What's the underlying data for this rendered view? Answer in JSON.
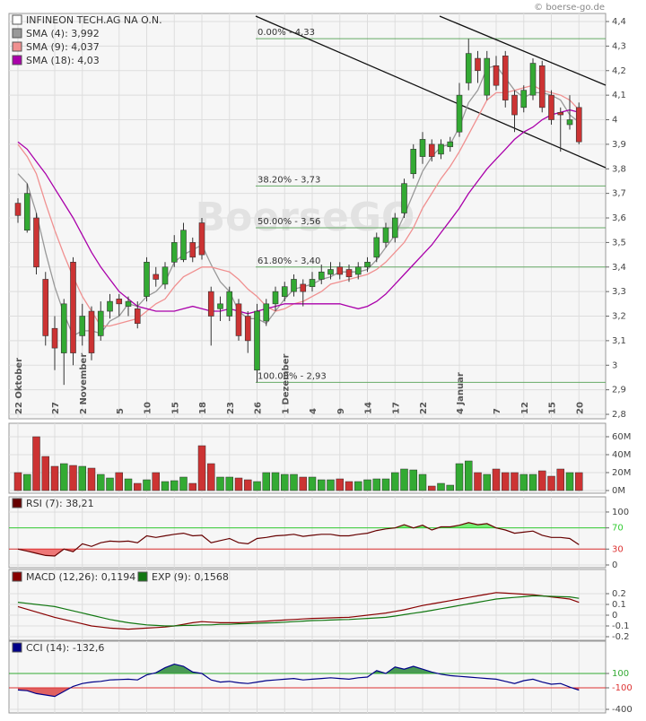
{
  "header": {
    "copyright": "© boerse-go.de"
  },
  "chart_data": [
    {
      "type": "candlestick",
      "name": "INFINEON TECH.AG NA O.N.",
      "name_color": "#ffffff",
      "watermark": "BoerseGO",
      "grid": true,
      "categories": [
        "22 Oktober",
        null,
        null,
        null,
        "27",
        null,
        null,
        "2 November",
        null,
        null,
        null,
        "5",
        null,
        null,
        "10",
        null,
        null,
        "15",
        null,
        null,
        "18",
        null,
        null,
        "23",
        null,
        null,
        "26",
        null,
        null,
        "1 Dezember",
        null,
        null,
        "4",
        null,
        null,
        "9",
        null,
        null,
        "14",
        null,
        null,
        "17",
        null,
        null,
        "22",
        null,
        null,
        null,
        "4 Januar",
        null,
        null,
        null,
        "7",
        null,
        null,
        "12",
        null,
        null,
        "15",
        null,
        null,
        "20"
      ],
      "open": [
        3.66,
        3.55,
        3.6,
        3.35,
        3.15,
        3.05,
        3.42,
        3.12,
        3.22,
        3.12,
        3.22,
        3.27,
        3.24,
        3.23,
        3.28,
        3.37,
        3.33,
        3.42,
        3.43,
        3.5,
        3.58,
        3.3,
        3.23,
        3.2,
        3.25,
        3.2,
        2.98,
        3.18,
        3.25,
        3.28,
        3.3,
        3.33,
        3.32,
        3.35,
        3.37,
        3.4,
        3.39,
        3.37,
        3.4,
        3.44,
        3.5,
        3.52,
        3.62,
        3.78,
        3.85,
        3.9,
        3.86,
        3.89,
        3.95,
        4.15,
        4.25,
        4.1,
        4.22,
        4.26,
        4.1,
        4.05,
        4.1,
        4.22,
        4.1,
        4.03,
        3.98,
        4.05
      ],
      "high": [
        3.68,
        3.74,
        3.62,
        3.38,
        3.2,
        3.27,
        3.44,
        3.25,
        3.24,
        3.26,
        3.29,
        3.29,
        3.28,
        3.26,
        3.44,
        3.4,
        3.42,
        3.53,
        3.58,
        3.52,
        3.6,
        3.32,
        3.28,
        3.32,
        3.27,
        3.22,
        3.25,
        3.27,
        3.32,
        3.34,
        3.37,
        3.35,
        3.38,
        3.41,
        3.42,
        3.42,
        3.41,
        3.42,
        3.44,
        3.54,
        3.58,
        3.62,
        3.76,
        3.9,
        3.95,
        3.92,
        3.92,
        3.93,
        4.15,
        4.33,
        4.28,
        4.28,
        4.26,
        4.28,
        4.12,
        4.14,
        4.25,
        4.24,
        4.12,
        4.05,
        4.1,
        4.07
      ],
      "low": [
        3.58,
        3.54,
        3.37,
        3.08,
        2.98,
        2.92,
        3.0,
        3.08,
        3.02,
        3.1,
        3.19,
        3.2,
        3.2,
        3.15,
        3.26,
        3.32,
        3.31,
        3.4,
        3.42,
        3.42,
        3.43,
        3.08,
        3.18,
        3.18,
        3.1,
        3.05,
        2.93,
        3.16,
        3.22,
        3.26,
        3.28,
        3.24,
        3.3,
        3.33,
        3.35,
        3.35,
        3.34,
        3.35,
        3.38,
        3.42,
        3.48,
        3.5,
        3.6,
        3.76,
        3.82,
        3.83,
        3.84,
        3.87,
        3.93,
        4.12,
        4.15,
        4.08,
        4.12,
        4.05,
        3.95,
        4.03,
        4.08,
        4.03,
        3.98,
        3.87,
        3.96,
        3.9
      ],
      "close": [
        3.61,
        3.7,
        3.4,
        3.12,
        3.07,
        3.25,
        3.05,
        3.2,
        3.05,
        3.22,
        3.26,
        3.25,
        3.26,
        3.17,
        3.42,
        3.35,
        3.4,
        3.5,
        3.55,
        3.44,
        3.45,
        3.2,
        3.25,
        3.3,
        3.12,
        3.1,
        3.22,
        3.25,
        3.3,
        3.32,
        3.35,
        3.3,
        3.35,
        3.38,
        3.39,
        3.37,
        3.36,
        3.4,
        3.42,
        3.52,
        3.56,
        3.6,
        3.74,
        3.88,
        3.92,
        3.85,
        3.9,
        3.91,
        4.1,
        4.27,
        4.2,
        4.25,
        4.14,
        4.08,
        4.02,
        4.12,
        4.23,
        4.05,
        4.0,
        4.02,
        4.0,
        3.91
      ],
      "up_color": "#33aa33",
      "down_color": "#cc3333",
      "series": [
        {
          "name": "SMA (4): 3,992",
          "color": "#999999",
          "values": [
            3.78,
            3.74,
            3.62,
            3.46,
            3.32,
            3.21,
            3.12,
            3.14,
            3.14,
            3.13,
            3.18,
            3.2,
            3.25,
            3.24,
            3.28,
            3.3,
            3.34,
            3.42,
            3.45,
            3.47,
            3.49,
            3.41,
            3.34,
            3.3,
            3.22,
            3.19,
            3.19,
            3.17,
            3.22,
            3.27,
            3.31,
            3.32,
            3.33,
            3.35,
            3.36,
            3.38,
            3.38,
            3.38,
            3.39,
            3.43,
            3.48,
            3.53,
            3.61,
            3.7,
            3.79,
            3.85,
            3.89,
            3.9,
            3.97,
            4.07,
            4.12,
            4.21,
            4.22,
            4.17,
            4.12,
            4.09,
            4.11,
            4.11,
            4.1,
            4.08,
            4.02,
            3.99
          ]
        },
        {
          "name": "SMA (9): 4,037",
          "color": "#f09090",
          "values": [
            3.9,
            3.85,
            3.78,
            3.66,
            3.55,
            3.45,
            3.36,
            3.28,
            3.22,
            3.16,
            3.16,
            3.17,
            3.18,
            3.19,
            3.22,
            3.25,
            3.27,
            3.32,
            3.36,
            3.38,
            3.4,
            3.4,
            3.39,
            3.38,
            3.35,
            3.31,
            3.28,
            3.24,
            3.22,
            3.23,
            3.25,
            3.26,
            3.28,
            3.3,
            3.33,
            3.34,
            3.35,
            3.36,
            3.37,
            3.39,
            3.42,
            3.46,
            3.5,
            3.56,
            3.64,
            3.7,
            3.76,
            3.81,
            3.87,
            3.94,
            4.01,
            4.08,
            4.11,
            4.11,
            4.12,
            4.13,
            4.14,
            4.12,
            4.11,
            4.1,
            4.08,
            4.04
          ]
        },
        {
          "name": "SMA (18): 4,03",
          "color": "#aa00aa",
          "values": [
            3.91,
            3.88,
            3.83,
            3.78,
            3.72,
            3.66,
            3.6,
            3.53,
            3.46,
            3.4,
            3.35,
            3.3,
            3.27,
            3.24,
            3.23,
            3.22,
            3.22,
            3.22,
            3.23,
            3.24,
            3.23,
            3.22,
            3.22,
            3.23,
            3.22,
            3.21,
            3.22,
            3.23,
            3.24,
            3.25,
            3.25,
            3.25,
            3.25,
            3.25,
            3.25,
            3.25,
            3.24,
            3.23,
            3.24,
            3.26,
            3.29,
            3.33,
            3.37,
            3.41,
            3.45,
            3.49,
            3.54,
            3.59,
            3.64,
            3.7,
            3.75,
            3.8,
            3.84,
            3.88,
            3.92,
            3.95,
            3.97,
            4.0,
            4.02,
            4.03,
            4.04,
            4.03
          ]
        }
      ],
      "ylim": [
        2.78,
        4.43
      ],
      "yticks": [
        {
          "value": 2.8,
          "label": "2,8"
        },
        {
          "value": 2.9,
          "label": "2,9"
        },
        3,
        {
          "value": 3.1,
          "label": "3,1"
        },
        {
          "value": 3.2,
          "label": "3,2"
        },
        {
          "value": 3.3,
          "label": "3,3"
        },
        {
          "value": 3.4,
          "label": "3,4"
        },
        {
          "value": 3.5,
          "label": "3,5"
        },
        {
          "value": 3.6,
          "label": "3,6"
        },
        {
          "value": 3.7,
          "label": "3,7"
        },
        {
          "value": 3.8,
          "label": "3,8"
        },
        {
          "value": 3.9,
          "label": "3,9"
        },
        4,
        {
          "value": 4.1,
          "label": "4,1"
        },
        {
          "value": 4.2,
          "label": "4,2"
        },
        {
          "value": 4.3,
          "label": "4,3"
        },
        {
          "value": 4.4,
          "label": "4,4"
        }
      ],
      "fib_color": "#66aa66",
      "fib_levels": [
        {
          "value": 4.33,
          "label": "0.00% - 4,33"
        },
        {
          "value": 3.73,
          "label": "38.20% - 3,73"
        },
        {
          "value": 3.56,
          "label": "50.00% - 3,56"
        },
        {
          "value": 3.4,
          "label": "61.80% - 3,40"
        },
        {
          "value": 2.93,
          "label": "100.00% - 2,93"
        }
      ]
    },
    {
      "type": "bar",
      "grid": true,
      "values": [
        20,
        18,
        60,
        38,
        27,
        30,
        28,
        27,
        25,
        18,
        14,
        20,
        13,
        8,
        12,
        20,
        10,
        11,
        15,
        8,
        50,
        30,
        15,
        15,
        14,
        12,
        10,
        20,
        20,
        18,
        18,
        15,
        15,
        12,
        12,
        13,
        10,
        10,
        12,
        13,
        13,
        20,
        24,
        23,
        18,
        5,
        8,
        6,
        30,
        33,
        20,
        18,
        24,
        20,
        20,
        18,
        18,
        22,
        16,
        24,
        20,
        20
      ],
      "ylim": [
        0,
        72
      ],
      "yticks": [
        {
          "value": 0,
          "label": "0M"
        },
        {
          "value": 20,
          "label": "20M"
        },
        {
          "value": 40,
          "label": "40M"
        },
        {
          "value": 60,
          "label": "60M"
        }
      ]
    },
    {
      "type": "line",
      "grid": true,
      "series": [
        {
          "name": "RSI (7): 38,21",
          "color": "#660000",
          "values": [
            30,
            26,
            22,
            18,
            17,
            30,
            25,
            40,
            35,
            42,
            45,
            44,
            45,
            42,
            55,
            52,
            55,
            58,
            60,
            55,
            56,
            42,
            46,
            50,
            42,
            40,
            50,
            52,
            55,
            56,
            58,
            54,
            56,
            58,
            58,
            55,
            55,
            58,
            60,
            65,
            68,
            70,
            76,
            70,
            75,
            66,
            72,
            72,
            75,
            80,
            76,
            78,
            70,
            66,
            60,
            62,
            64,
            56,
            52,
            52,
            50,
            38.21
          ]
        }
      ],
      "ylim": [
        0,
        105
      ],
      "yticks": [
        0,
        30,
        70,
        100
      ],
      "bands": {
        "upper": 70,
        "lower": 30,
        "upper_color": "#33cc33",
        "lower_color": "#dd3333",
        "upper_fill": "#77ee77",
        "lower_fill": "#ee7777"
      }
    },
    {
      "type": "line",
      "grid": true,
      "series": [
        {
          "name": "MACD (12,26): 0,1194",
          "color": "#880000",
          "values": [
            0.08,
            0.055,
            0.03,
            0.005,
            -0.02,
            -0.04,
            -0.06,
            -0.08,
            -0.1,
            -0.11,
            -0.12,
            -0.125,
            -0.13,
            -0.125,
            -0.12,
            -0.115,
            -0.11,
            -0.1,
            -0.085,
            -0.07,
            -0.06,
            -0.065,
            -0.07,
            -0.07,
            -0.07,
            -0.065,
            -0.06,
            -0.055,
            -0.05,
            -0.045,
            -0.04,
            -0.035,
            -0.03,
            -0.028,
            -0.025,
            -0.022,
            -0.02,
            -0.01,
            0.0,
            0.01,
            0.02,
            0.035,
            0.05,
            0.07,
            0.09,
            0.105,
            0.12,
            0.135,
            0.15,
            0.165,
            0.18,
            0.195,
            0.21,
            0.205,
            0.2,
            0.195,
            0.19,
            0.18,
            0.17,
            0.16,
            0.15,
            0.1194
          ]
        },
        {
          "name": "EXP (9): 0,1568",
          "color": "#117711",
          "values": [
            0.12,
            0.11,
            0.1,
            0.09,
            0.08,
            0.06,
            0.04,
            0.02,
            0.0,
            -0.02,
            -0.04,
            -0.055,
            -0.07,
            -0.08,
            -0.09,
            -0.095,
            -0.1,
            -0.1,
            -0.095,
            -0.095,
            -0.09,
            -0.09,
            -0.085,
            -0.085,
            -0.08,
            -0.078,
            -0.075,
            -0.072,
            -0.07,
            -0.065,
            -0.06,
            -0.055,
            -0.05,
            -0.048,
            -0.045,
            -0.042,
            -0.04,
            -0.035,
            -0.03,
            -0.025,
            -0.02,
            -0.008,
            0.005,
            0.018,
            0.03,
            0.045,
            0.06,
            0.075,
            0.09,
            0.105,
            0.12,
            0.135,
            0.15,
            0.158,
            0.165,
            0.172,
            0.18,
            0.178,
            0.175,
            0.172,
            0.17,
            0.1568
          ]
        }
      ],
      "ylim": [
        -0.22,
        0.4
      ],
      "yticks": [
        -0.2,
        -0.1,
        0,
        0.1,
        0.2
      ]
    },
    {
      "type": "line",
      "grid": true,
      "series": [
        {
          "name": "CCI (14): -132,6",
          "color": "#000088",
          "values": [
            -130,
            -140,
            -180,
            -200,
            -220,
            -150,
            -80,
            -40,
            -20,
            -10,
            10,
            15,
            20,
            10,
            80,
            110,
            180,
            230,
            200,
            120,
            100,
            10,
            -20,
            -10,
            -30,
            -40,
            -20,
            0,
            10,
            20,
            30,
            10,
            20,
            30,
            40,
            30,
            20,
            40,
            50,
            140,
            100,
            190,
            160,
            200,
            160,
            120,
            90,
            70,
            60,
            50,
            40,
            30,
            20,
            -10,
            -40,
            0,
            20,
            -20,
            -50,
            -40,
            -90,
            -132.6
          ]
        }
      ],
      "ylim": [
        -420,
        500
      ],
      "yticks": [
        -400,
        -100,
        100
      ],
      "bands": {
        "upper": 100,
        "lower": -100,
        "upper_color": "#33aa33",
        "lower_color": "#dd3333",
        "upper_fill": "#4a9a55",
        "lower_fill": "#e06060"
      }
    }
  ]
}
